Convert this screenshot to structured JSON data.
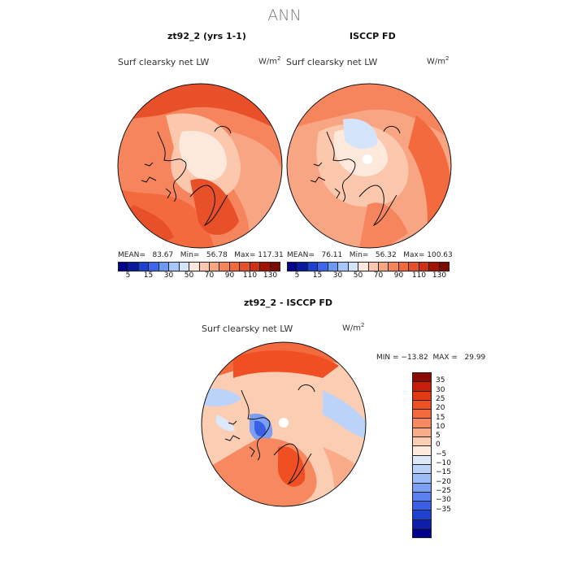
{
  "main_title": "ANN",
  "panels": [
    {
      "title": "zt92_2 (yrs 1-1)",
      "variable": "Surf clearsky net LW",
      "units": "W/m",
      "units_sup": "2",
      "stats": "MEAN=   83.67   Min=   56.78   Max= 117.31"
    },
    {
      "title": "ISCCP FD",
      "variable": "Surf clearsky net LW",
      "units": "W/m",
      "units_sup": "2",
      "stats": "MEAN=   76.11   Min=   56.32   Max= 100.63"
    }
  ],
  "abs_colorbar": {
    "colors": [
      "#00008c",
      "#0a1aa0",
      "#1f3fd0",
      "#3a66f0",
      "#6f98f5",
      "#a8c6fa",
      "#d4e4fb",
      "#fde9dc",
      "#fbc8ae",
      "#f8a583",
      "#f6845c",
      "#f26a3e",
      "#e8502a",
      "#cf3115",
      "#a01508",
      "#7a0b05"
    ],
    "tick_labels": [
      "5",
      "15",
      "30",
      "50",
      "70",
      "90",
      "110",
      "130"
    ]
  },
  "diff_panel": {
    "title": "zt92_2 - ISCCP FD",
    "variable": "Surf clearsky net LW",
    "units": "W/m",
    "units_sup": "2",
    "stats": "MIN = −13.82  MAX =   29.99"
  },
  "diff_colorbar": {
    "colors": [
      "#8c0a04",
      "#c51e0a",
      "#e03a14",
      "#ef4f22",
      "#f26a3e",
      "#f6895f",
      "#f9ac87",
      "#fbcdb2",
      "#fdeadc",
      "#dde9fb",
      "#bcd3f9",
      "#9bbcf6",
      "#7b9ff2",
      "#5a7fee",
      "#3a5ee6",
      "#2040d0",
      "#0d1ea8",
      "#00008c"
    ],
    "tick_labels": [
      "35",
      "30",
      "25",
      "20",
      "15",
      "10",
      "5",
      "0",
      "−5",
      "−10",
      "−15",
      "−20",
      "−25",
      "−30",
      "−35"
    ]
  },
  "colors": {
    "land_outline": "#111111",
    "hole": "#ffffff"
  }
}
